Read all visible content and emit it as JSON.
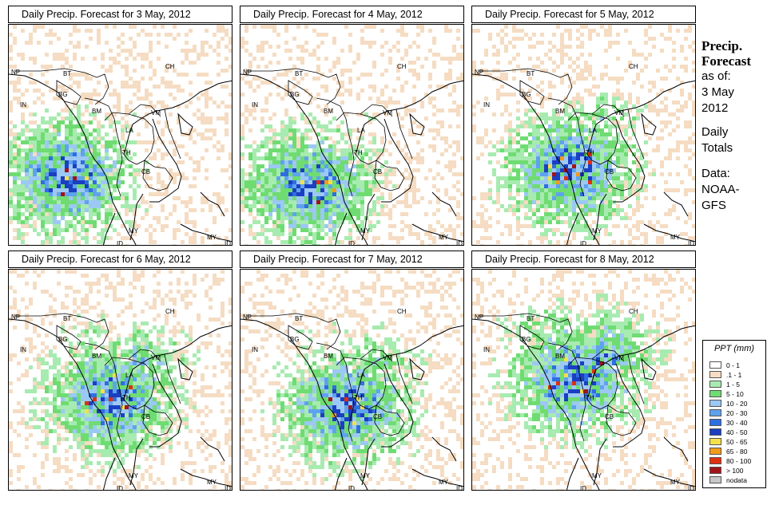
{
  "panels": [
    {
      "title": "Daily Precip. Forecast for  3 May, 2012"
    },
    {
      "title": "Daily Precip. Forecast for  4 May, 2012"
    },
    {
      "title": "Daily Precip. Forecast for  5 May, 2012"
    },
    {
      "title": "Daily Precip. Forecast for  6 May, 2012"
    },
    {
      "title": "Daily Precip. Forecast for  7 May, 2012"
    },
    {
      "title": "Daily Precip. Forecast for  8 May, 2012"
    }
  ],
  "map_labels": {
    "np": "NP",
    "bt": "BT",
    "bg": "BG",
    "in": "IN",
    "bm": "BM",
    "ch": "CH",
    "vm": "VM",
    "la": "LA",
    "th": "TH",
    "cb": "CB",
    "my": "MY",
    "id": "ID",
    "my2": "MY",
    "id2": "ID"
  },
  "side": {
    "heading1": "Precip.",
    "heading2": "Forecast",
    "asof": "as of:",
    "date1": "3 May",
    "date2": "2012",
    "totals1": "Daily",
    "totals2": "Totals",
    "data1": "Data:",
    "data2": "NOAA-",
    "data3": "GFS"
  },
  "legend": {
    "title": "PPT (mm)",
    "classes": [
      {
        "label": "0 - 1",
        "color": "#ffffff"
      },
      {
        "label": ".1 - 1",
        "color": "#f5dcc2"
      },
      {
        "label": "1 - 5",
        "color": "#a7ebb0"
      },
      {
        "label": "5 - 10",
        "color": "#6fdc72"
      },
      {
        "label": "10 - 20",
        "color": "#9cc8f4"
      },
      {
        "label": "20 - 30",
        "color": "#5fa2ee"
      },
      {
        "label": "30 - 40",
        "color": "#2f6ee0"
      },
      {
        "label": "40 - 50",
        "color": "#1a3fc2"
      },
      {
        "label": "50 - 65",
        "color": "#f5e04a"
      },
      {
        "label": "65 - 80",
        "color": "#f39b1a"
      },
      {
        "label": "80 - 100",
        "color": "#e03010"
      },
      {
        "label": "> 100",
        "color": "#a0141a"
      },
      {
        "label": "nodata",
        "color": "#c8c8c8"
      }
    ]
  }
}
